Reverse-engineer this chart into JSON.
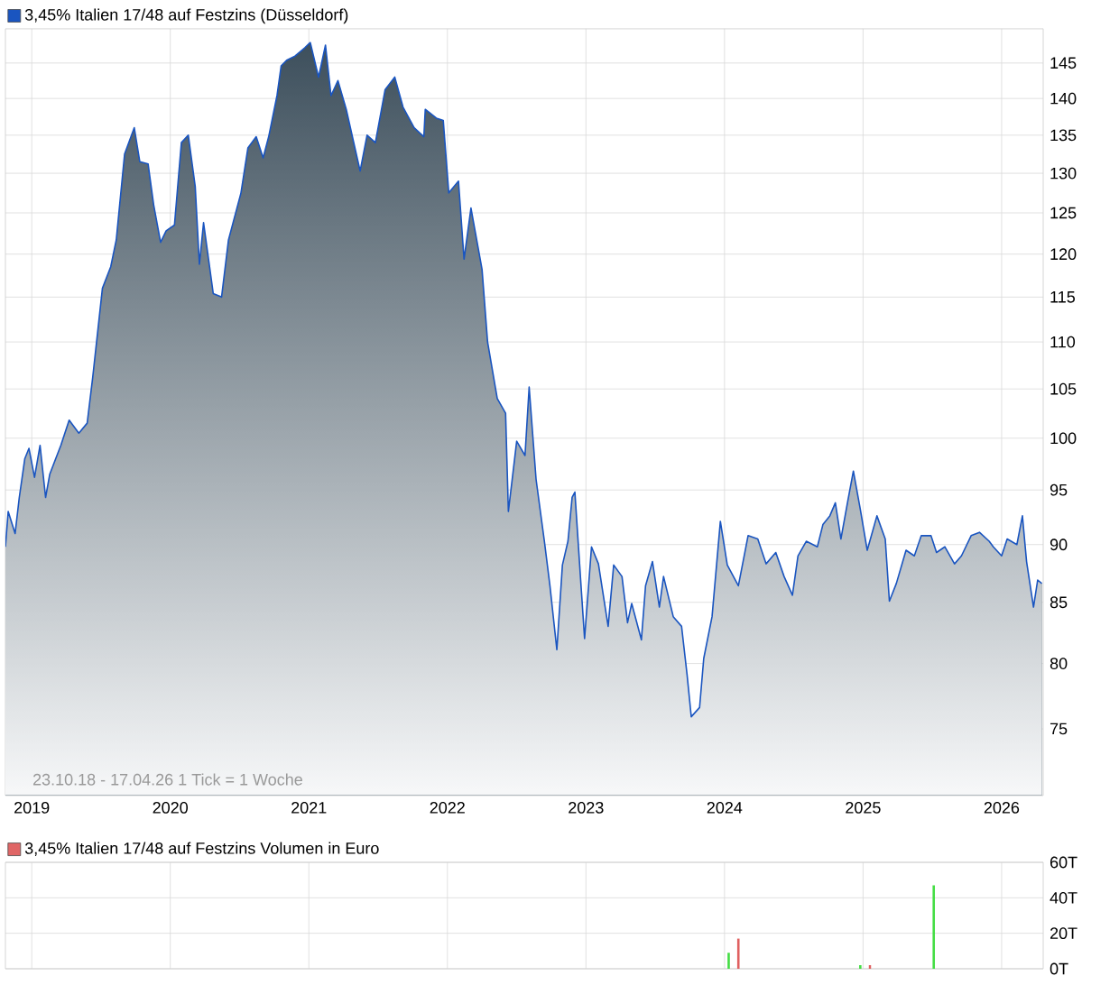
{
  "chart_data": [
    {
      "type": "area",
      "log": "y",
      "grid": true,
      "legend": "top left",
      "xlim": [
        2018.81,
        2026.3
      ],
      "xticks": [
        2019,
        2020,
        2021,
        2022,
        2023,
        2024,
        2025,
        2026
      ],
      "ylim": [
        70.2,
        150
      ],
      "yticks": [
        75,
        80,
        85,
        90,
        95,
        100,
        105,
        110,
        115,
        120,
        125,
        130,
        135,
        140,
        145
      ],
      "annotations": [
        "23.10.18 - 17.04.26   1 Tick = 1 Woche"
      ],
      "x": [
        2018.81,
        2018.83,
        2018.88,
        2018.91,
        2018.95,
        2018.98,
        2019.02,
        2019.06,
        2019.1,
        2019.13,
        2019.21,
        2019.27,
        2019.34,
        2019.4,
        2019.44,
        2019.51,
        2019.57,
        2019.61,
        2019.67,
        2019.74,
        2019.78,
        2019.84,
        2019.88,
        2019.93,
        2019.97,
        2020.03,
        2020.08,
        2020.13,
        2020.18,
        2020.21,
        2020.24,
        2020.31,
        2020.37,
        2020.42,
        2020.51,
        2020.56,
        2020.62,
        2020.67,
        2020.71,
        2020.77,
        2020.8,
        2020.84,
        2020.9,
        2020.97,
        2021.01,
        2021.07,
        2021.12,
        2021.16,
        2021.21,
        2021.27,
        2021.37,
        2021.42,
        2021.48,
        2021.55,
        2021.62,
        2021.68,
        2021.76,
        2021.83,
        2021.84,
        2021.92,
        2021.97,
        2022.01,
        2022.08,
        2022.12,
        2022.17,
        2022.25,
        2022.29,
        2022.36,
        2022.42,
        2022.44,
        2022.5,
        2022.56,
        2022.59,
        2022.64,
        2022.7,
        2022.74,
        2022.79,
        2022.83,
        2022.87,
        2022.9,
        2022.92,
        2022.96,
        2022.99,
        2023.04,
        2023.09,
        2023.16,
        2023.2,
        2023.26,
        2023.3,
        2023.33,
        2023.4,
        2023.43,
        2023.48,
        2023.53,
        2023.56,
        2023.63,
        2023.69,
        2023.73,
        2023.76,
        2023.82,
        2023.85,
        2023.91,
        2023.97,
        2024.02,
        2024.1,
        2024.17,
        2024.24,
        2024.3,
        2024.37,
        2024.43,
        2024.49,
        2024.53,
        2024.59,
        2024.67,
        2024.71,
        2024.76,
        2024.8,
        2024.84,
        2024.89,
        2024.93,
        2024.98,
        2025.03,
        2025.1,
        2025.16,
        2025.19,
        2025.24,
        2025.31,
        2025.37,
        2025.42,
        2025.49,
        2025.53,
        2025.59,
        2025.66,
        2025.71,
        2025.78,
        2025.84,
        2025.91,
        2025.94,
        2026.0,
        2026.04,
        2026.11,
        2026.15,
        2026.18,
        2026.23,
        2026.26,
        2026.29
      ],
      "series": [
        {
          "name": "3,45% Italien 17/48 auf Festzins (Düsseldorf)",
          "color": "#1a55c0",
          "values": [
            89.8,
            93,
            91,
            94.3,
            98,
            99,
            96.2,
            99.3,
            94.3,
            96.5,
            99.3,
            101.8,
            100.5,
            101.5,
            106.2,
            116,
            118.5,
            121.7,
            132.5,
            136,
            131.5,
            131.2,
            126,
            121.4,
            122.8,
            123.5,
            134,
            135,
            128.3,
            118.8,
            123.8,
            115.4,
            115,
            121.7,
            127.5,
            133.3,
            134.8,
            132,
            134.8,
            140.4,
            144.6,
            145.4,
            146,
            147.2,
            148,
            143,
            147.6,
            140.4,
            142.5,
            138.5,
            130.3,
            135,
            134,
            141.2,
            143,
            138.8,
            136,
            134.8,
            138.5,
            137.3,
            137,
            127.5,
            129,
            119.4,
            125.6,
            118.2,
            110,
            104,
            102.5,
            93,
            99.7,
            98.3,
            105.2,
            96,
            90.3,
            86.4,
            81.1,
            88.2,
            90.3,
            94.3,
            94.8,
            87.2,
            82,
            89.8,
            88.3,
            83,
            88.2,
            87.2,
            83.3,
            84.9,
            81.9,
            86.4,
            88.5,
            84.6,
            87.2,
            83.8,
            83,
            79.1,
            75.9,
            76.6,
            80.4,
            83.8,
            92.1,
            88.2,
            86.4,
            90.8,
            90.5,
            88.3,
            89.3,
            87.2,
            85.6,
            89,
            90.3,
            89.8,
            91.8,
            92.6,
            93.8,
            90.5,
            94,
            96.8,
            93.2,
            89.5,
            92.6,
            90.5,
            85.1,
            86.6,
            89.5,
            89,
            90.8,
            90.8,
            89.3,
            89.8,
            88.3,
            89,
            90.8,
            91.1,
            90.3,
            89.8,
            89,
            90.5,
            90,
            92.6,
            88.5,
            84.6,
            86.9,
            86.6
          ]
        }
      ]
    },
    {
      "type": "bar",
      "grid": true,
      "legend": "top left",
      "tick_labels": "y",
      "xlim": [
        2018.81,
        2026.3
      ],
      "xticks": [
        2019,
        2020,
        2021,
        2022,
        2023,
        2024,
        2025,
        2026
      ],
      "ylim": [
        0,
        60
      ],
      "yticks": [
        {
          "value": 0,
          "label": "0T"
        },
        {
          "value": 20,
          "label": "20T"
        },
        {
          "value": 40,
          "label": "40T"
        },
        {
          "value": 60,
          "label": "60T"
        }
      ],
      "series": [
        {
          "name": "3,45% Italien 17/48 auf Festzins Volumen in Euro",
          "color": "#e06666",
          "x": [
            2024.03,
            2024.1,
            2024.98,
            2025.05,
            2025.51
          ],
          "values": [
            9,
            17,
            2,
            2,
            47
          ],
          "colors": [
            "#44dd44",
            "#e06060",
            "#44dd44",
            "#e06060",
            "#44dd44"
          ]
        }
      ]
    }
  ]
}
